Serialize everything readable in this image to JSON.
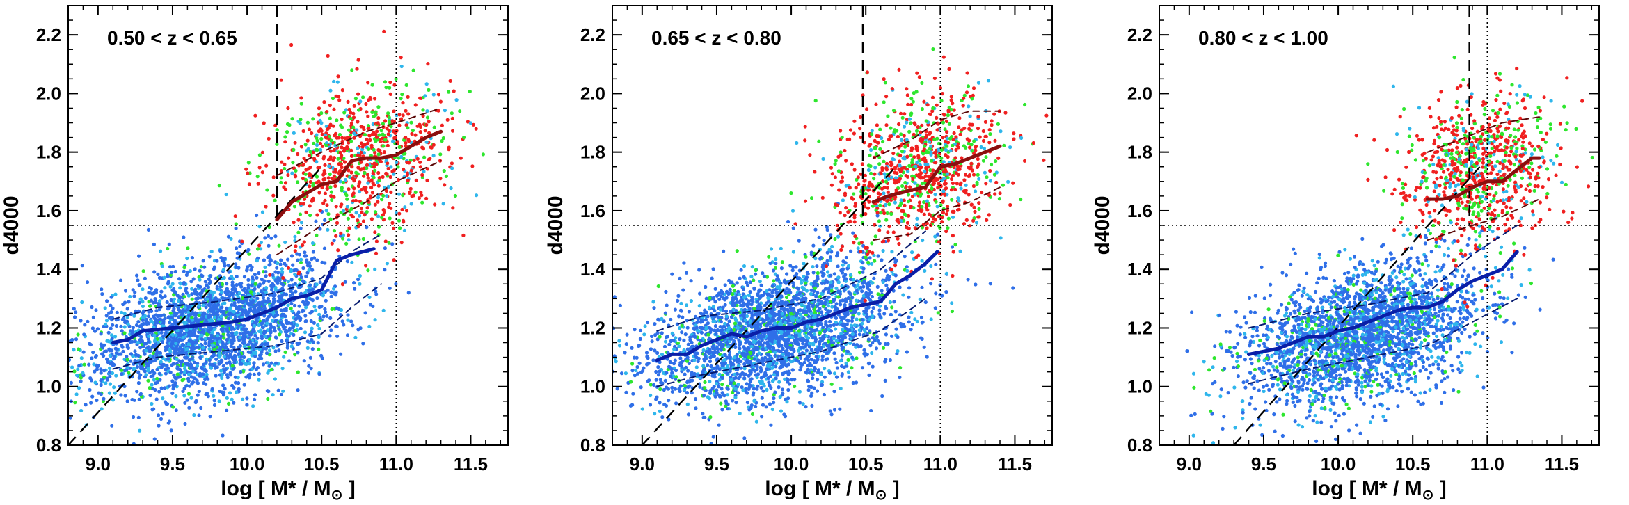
{
  "chart_data": [
    {
      "type": "scatter",
      "title": "0.50 < z < 0.65",
      "xlabel": "log [ M* / M",
      "xlabel_sub": "⊙",
      "xlabel_close": " ]",
      "ylabel": "d4000",
      "xlim": [
        8.8,
        11.75
      ],
      "ylim": [
        0.8,
        2.3
      ],
      "xticks": [
        9.0,
        9.5,
        10.0,
        10.5,
        11.0,
        11.5
      ],
      "xtick_labels": [
        "9.0",
        "9.5",
        "10.0",
        "10.5",
        "11.0",
        "11.5"
      ],
      "yticks": [
        0.8,
        1.0,
        1.2,
        1.4,
        1.6,
        1.8,
        2.0,
        2.2
      ],
      "ytick_labels": [
        "0.8",
        "1.0",
        "1.2",
        "1.4",
        "1.6",
        "1.8",
        "2.0",
        "2.2"
      ],
      "hline": 1.55,
      "vline_dotted": 11.0,
      "vline_dashed": 10.2,
      "diag_line": [
        [
          8.8,
          0.8
        ],
        [
          10.5,
          1.75
        ]
      ],
      "blue_median": {
        "x": [
          9.1,
          9.2,
          9.3,
          9.5,
          9.7,
          9.9,
          10.0,
          10.1,
          10.2,
          10.3,
          10.4,
          10.5,
          10.6,
          10.7,
          10.85
        ],
        "y": [
          1.15,
          1.16,
          1.19,
          1.2,
          1.21,
          1.22,
          1.23,
          1.25,
          1.27,
          1.3,
          1.31,
          1.33,
          1.43,
          1.45,
          1.47
        ]
      },
      "blue_upper": {
        "x": [
          9.1,
          9.4,
          9.8,
          10.2,
          10.5,
          10.7,
          10.9
        ],
        "y": [
          1.23,
          1.27,
          1.29,
          1.32,
          1.37,
          1.46,
          1.52
        ]
      },
      "blue_lower": {
        "x": [
          9.1,
          9.4,
          9.8,
          10.2,
          10.5,
          10.7,
          10.9
        ],
        "y": [
          1.06,
          1.1,
          1.12,
          1.14,
          1.18,
          1.27,
          1.35
        ]
      },
      "red_median": {
        "x": [
          10.2,
          10.3,
          10.4,
          10.5,
          10.6,
          10.7,
          10.8,
          10.9,
          11.0,
          11.1,
          11.2,
          11.3
        ],
        "y": [
          1.57,
          1.63,
          1.66,
          1.69,
          1.7,
          1.77,
          1.78,
          1.78,
          1.79,
          1.82,
          1.85,
          1.87
        ]
      },
      "red_upper": {
        "x": [
          10.2,
          10.5,
          10.8,
          11.0,
          11.3
        ],
        "y": [
          1.72,
          1.8,
          1.87,
          1.9,
          1.95
        ]
      },
      "red_lower": {
        "x": [
          10.2,
          10.5,
          10.8,
          11.0,
          11.3
        ],
        "y": [
          1.45,
          1.55,
          1.63,
          1.7,
          1.77
        ]
      },
      "cloud_blue": {
        "mx": 9.75,
        "my": 1.2,
        "sx": 0.42,
        "sy": 0.11,
        "slope": 0.12,
        "n": 2600
      },
      "cloud_red": {
        "mx": 10.75,
        "my": 1.77,
        "sx": 0.3,
        "sy": 0.13,
        "slope": 0.1,
        "n": 900
      }
    },
    {
      "type": "scatter",
      "title": "0.65 < z < 0.80",
      "xlabel": "log [ M* / M",
      "xlabel_sub": "⊙",
      "xlabel_close": " ]",
      "ylabel": "d4000",
      "xlim": [
        8.8,
        11.75
      ],
      "ylim": [
        0.8,
        2.3
      ],
      "xticks": [
        9.0,
        9.5,
        10.0,
        10.5,
        11.0,
        11.5
      ],
      "xtick_labels": [
        "9.0",
        "9.5",
        "10.0",
        "10.5",
        "11.0",
        "11.5"
      ],
      "yticks": [
        0.8,
        1.0,
        1.2,
        1.4,
        1.6,
        1.8,
        2.0,
        2.2
      ],
      "ytick_labels": [
        "0.8",
        "1.0",
        "1.2",
        "1.4",
        "1.6",
        "1.8",
        "2.0",
        "2.2"
      ],
      "hline": 1.55,
      "vline_dotted": 11.0,
      "vline_dashed": 10.48,
      "diag_line": [
        [
          9.0,
          0.8
        ],
        [
          10.7,
          1.75
        ]
      ],
      "blue_median": {
        "x": [
          9.1,
          9.2,
          9.3,
          9.4,
          9.5,
          9.6,
          9.7,
          9.8,
          9.9,
          10.0,
          10.1,
          10.2,
          10.3,
          10.4,
          10.5,
          10.6,
          10.7,
          10.8,
          10.9,
          10.98
        ],
        "y": [
          1.09,
          1.11,
          1.11,
          1.14,
          1.16,
          1.18,
          1.17,
          1.19,
          1.2,
          1.2,
          1.22,
          1.23,
          1.25,
          1.27,
          1.28,
          1.29,
          1.35,
          1.38,
          1.42,
          1.46
        ]
      },
      "blue_upper": {
        "x": [
          9.1,
          9.4,
          9.8,
          10.2,
          10.6,
          10.9
        ],
        "y": [
          1.19,
          1.24,
          1.26,
          1.3,
          1.4,
          1.53
        ]
      },
      "blue_lower": {
        "x": [
          9.1,
          9.4,
          9.8,
          10.2,
          10.6,
          10.9
        ],
        "y": [
          1.0,
          1.04,
          1.08,
          1.12,
          1.19,
          1.3
        ]
      },
      "red_median": {
        "x": [
          10.55,
          10.65,
          10.8,
          10.9,
          11.0,
          11.1,
          11.2,
          11.3,
          11.4
        ],
        "y": [
          1.63,
          1.65,
          1.67,
          1.68,
          1.75,
          1.76,
          1.78,
          1.8,
          1.82
        ]
      },
      "red_upper": {
        "x": [
          10.55,
          10.8,
          11.0,
          11.2,
          11.4
        ],
        "y": [
          1.78,
          1.84,
          1.91,
          1.94,
          1.94
        ]
      },
      "red_lower": {
        "x": [
          10.55,
          10.8,
          11.0,
          11.2,
          11.4
        ],
        "y": [
          1.5,
          1.52,
          1.6,
          1.63,
          1.68
        ]
      },
      "cloud_blue": {
        "mx": 9.9,
        "my": 1.19,
        "sx": 0.42,
        "sy": 0.11,
        "slope": 0.13,
        "n": 2700
      },
      "cloud_red": {
        "mx": 10.85,
        "my": 1.74,
        "sx": 0.28,
        "sy": 0.13,
        "slope": 0.1,
        "n": 950
      }
    },
    {
      "type": "scatter",
      "title": "0.80 < z < 1.00",
      "xlabel": "log [ M* / M",
      "xlabel_sub": "⊙",
      "xlabel_close": " ]",
      "ylabel": "d4000",
      "xlim": [
        8.8,
        11.75
      ],
      "ylim": [
        0.8,
        2.3
      ],
      "xticks": [
        9.0,
        9.5,
        10.0,
        10.5,
        11.0,
        11.5
      ],
      "xtick_labels": [
        "9.0",
        "9.5",
        "10.0",
        "10.5",
        "11.0",
        "11.5"
      ],
      "yticks": [
        0.8,
        1.0,
        1.2,
        1.4,
        1.6,
        1.8,
        2.0,
        2.2
      ],
      "ytick_labels": [
        "0.8",
        "1.0",
        "1.2",
        "1.4",
        "1.6",
        "1.8",
        "2.0",
        "2.2"
      ],
      "hline": 1.55,
      "vline_dotted": 11.0,
      "vline_dashed": 10.88,
      "diag_line": [
        [
          9.3,
          0.8
        ],
        [
          10.95,
          1.75
        ]
      ],
      "blue_median": {
        "x": [
          9.4,
          9.5,
          9.6,
          9.7,
          9.8,
          9.9,
          10.0,
          10.1,
          10.2,
          10.3,
          10.4,
          10.5,
          10.6,
          10.7,
          10.8,
          10.9,
          11.0,
          11.1,
          11.2
        ],
        "y": [
          1.11,
          1.12,
          1.13,
          1.15,
          1.17,
          1.17,
          1.19,
          1.2,
          1.22,
          1.24,
          1.26,
          1.27,
          1.27,
          1.29,
          1.33,
          1.36,
          1.38,
          1.4,
          1.46
        ]
      },
      "blue_upper": {
        "x": [
          9.4,
          9.8,
          10.2,
          10.6,
          10.9,
          11.2
        ],
        "y": [
          1.2,
          1.25,
          1.28,
          1.32,
          1.45,
          1.55
        ]
      },
      "blue_lower": {
        "x": [
          9.4,
          9.8,
          10.2,
          10.6,
          10.9,
          11.2
        ],
        "y": [
          1.01,
          1.06,
          1.1,
          1.14,
          1.22,
          1.3
        ]
      },
      "red_median": {
        "x": [
          10.6,
          10.7,
          10.8,
          10.9,
          11.0,
          11.1,
          11.2,
          11.3,
          11.35
        ],
        "y": [
          1.64,
          1.64,
          1.65,
          1.68,
          1.7,
          1.7,
          1.74,
          1.78,
          1.78
        ]
      },
      "red_upper": {
        "x": [
          10.6,
          10.9,
          11.1,
          11.35
        ],
        "y": [
          1.8,
          1.86,
          1.9,
          1.92
        ]
      },
      "red_lower": {
        "x": [
          10.6,
          10.9,
          11.1,
          11.35
        ],
        "y": [
          1.5,
          1.55,
          1.58,
          1.64
        ]
      },
      "cloud_blue": {
        "mx": 10.15,
        "my": 1.18,
        "sx": 0.4,
        "sy": 0.11,
        "slope": 0.13,
        "n": 2500
      },
      "cloud_red": {
        "mx": 10.95,
        "my": 1.74,
        "sx": 0.26,
        "sy": 0.13,
        "slope": 0.08,
        "n": 850
      }
    }
  ],
  "colors": {
    "blue_points": "#2f6fe8",
    "cyan_points": "#2fb6ec",
    "green_points": "#2ee62e",
    "red_points": "#f02020",
    "blue_median": "#0a1fa8",
    "red_median": "#8b0e0e",
    "guides": "#000000"
  }
}
